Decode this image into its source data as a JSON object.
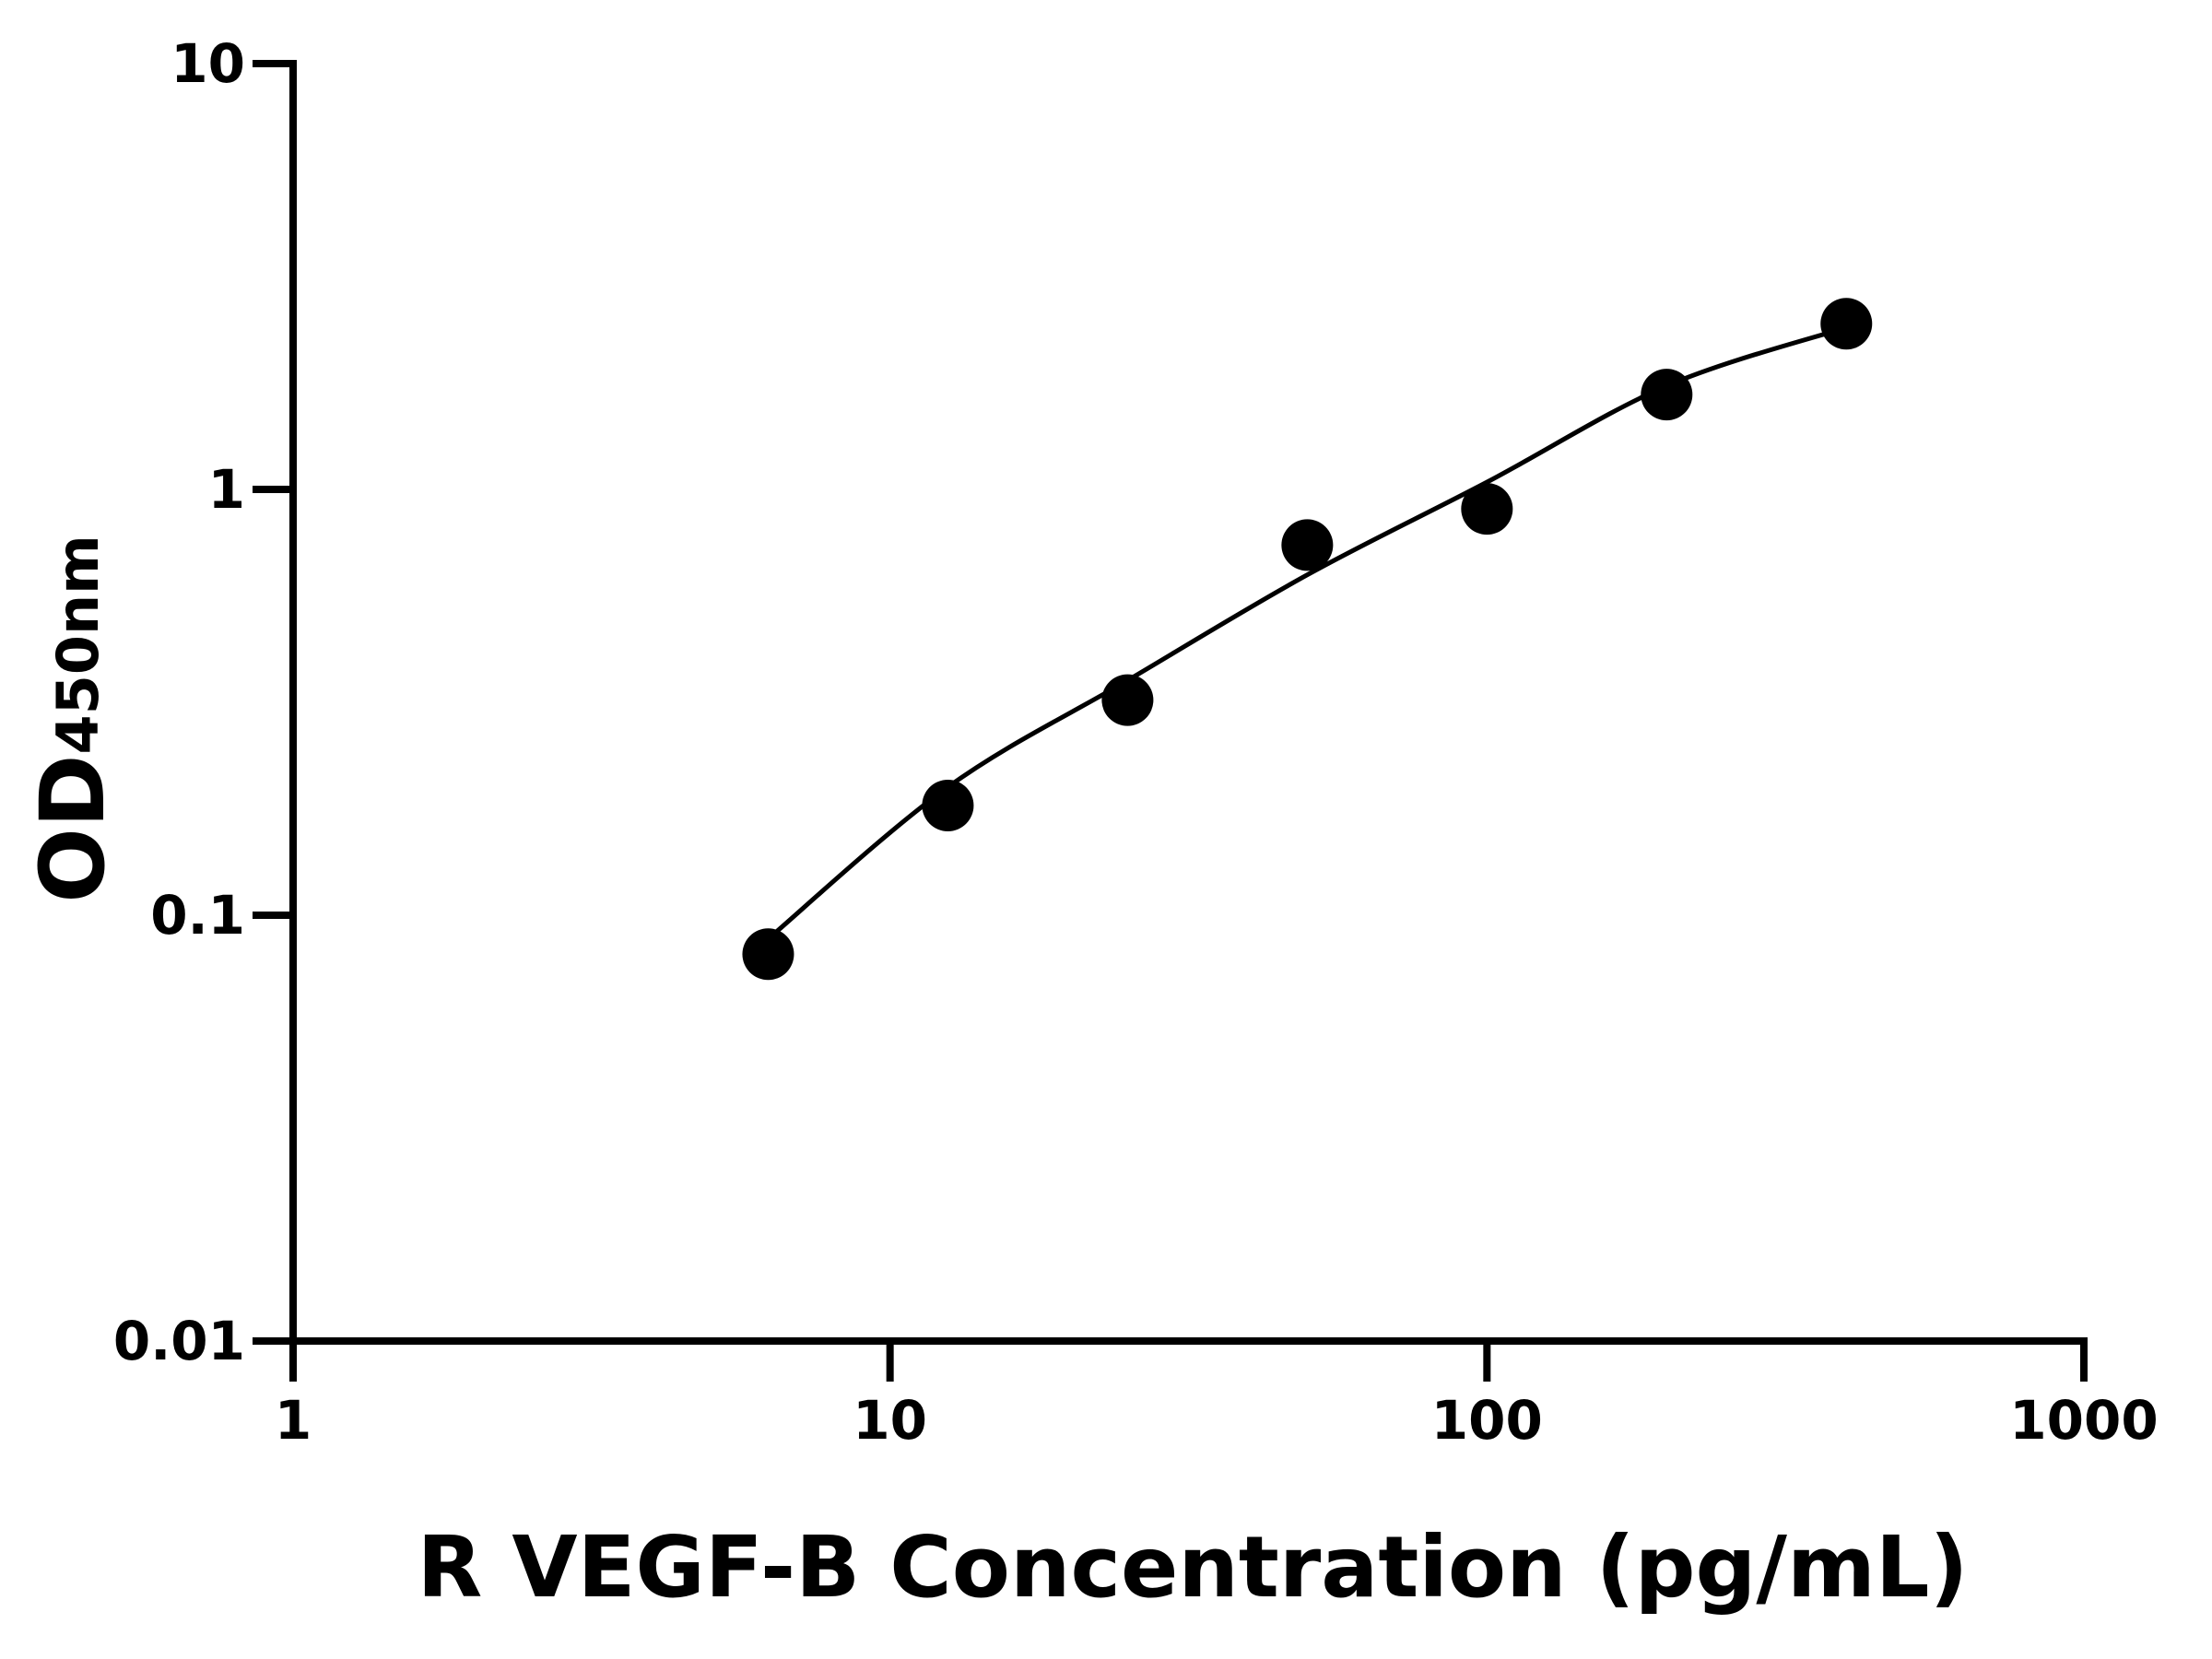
{
  "chart_data": {
    "type": "scatter",
    "x_label": "R VEGF-B Concentration (pg/mL)",
    "y_label": "OD",
    "y_label_subscript": "450nm",
    "xscale": "log",
    "yscale": "log",
    "xlim": [
      1,
      1000
    ],
    "ylim": [
      0.01,
      10
    ],
    "xticks": [
      1,
      10,
      100,
      1000
    ],
    "yticks": [
      0.01,
      0.1,
      1,
      10
    ],
    "color": "#000000",
    "x": [
      6.25,
      12.5,
      25,
      50,
      100,
      200,
      400
    ],
    "values": [
      0.081,
      0.181,
      0.32,
      0.74,
      0.9,
      1.67,
      2.45
    ],
    "fit_curve": {
      "x": [
        6.25,
        12.5,
        25,
        50,
        100,
        200,
        400
      ],
      "values": [
        0.088,
        0.2,
        0.356,
        0.63,
        1.04,
        1.75,
        2.4
      ]
    }
  }
}
